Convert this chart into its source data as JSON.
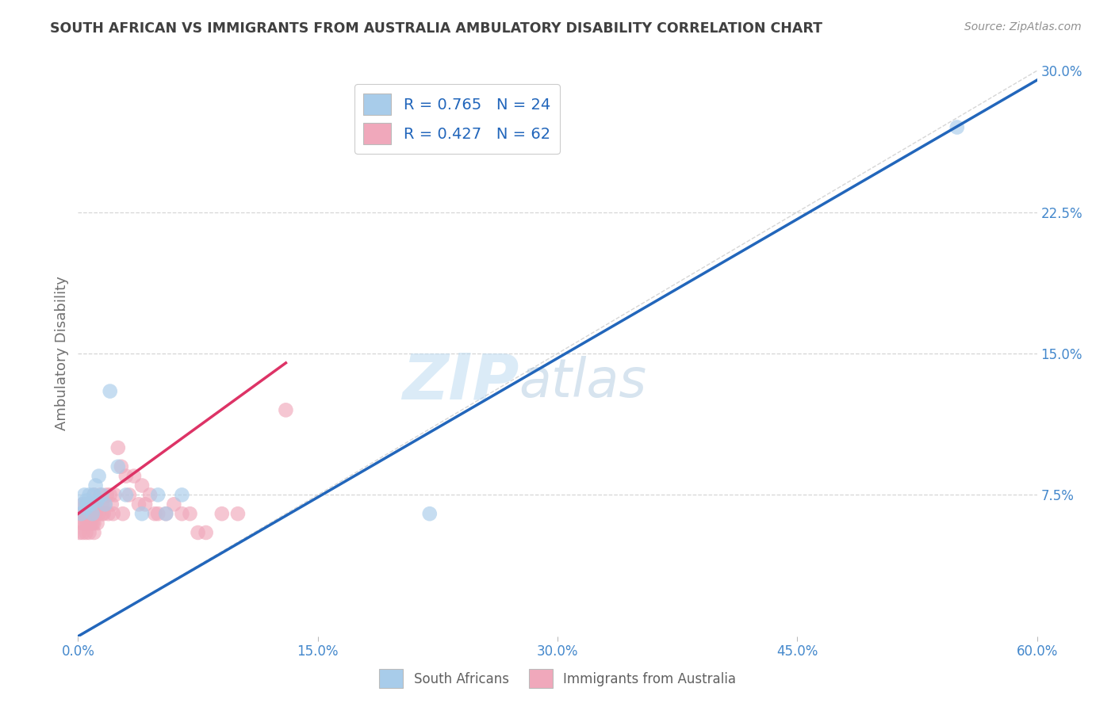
{
  "title": "SOUTH AFRICAN VS IMMIGRANTS FROM AUSTRALIA AMBULATORY DISABILITY CORRELATION CHART",
  "source": "Source: ZipAtlas.com",
  "ylabel": "Ambulatory Disability",
  "xlim": [
    0.0,
    0.6
  ],
  "ylim": [
    0.0,
    0.3
  ],
  "xticks": [
    0.0,
    0.15,
    0.3,
    0.45,
    0.6
  ],
  "xticklabels": [
    "0.0%",
    "15.0%",
    "30.0%",
    "45.0%",
    "60.0%"
  ],
  "yticks": [
    0.0,
    0.075,
    0.15,
    0.225,
    0.3
  ],
  "yticklabels": [
    "",
    "7.5%",
    "15.0%",
    "22.5%",
    "30.0%"
  ],
  "blue_R": 0.765,
  "blue_N": 24,
  "pink_R": 0.427,
  "pink_N": 62,
  "blue_color": "#a8ccea",
  "pink_color": "#f0a8bb",
  "blue_line_color": "#2266bb",
  "pink_line_color": "#dd3366",
  "legend_label_blue": "South Africans",
  "legend_label_pink": "Immigrants from Australia",
  "blue_line_x0": 0.0,
  "blue_line_y0": 0.0,
  "blue_line_x1": 0.6,
  "blue_line_y1": 0.295,
  "pink_line_x0": 0.0,
  "pink_line_y0": 0.065,
  "pink_line_x1": 0.13,
  "pink_line_y1": 0.145,
  "blue_scatter_x": [
    0.002,
    0.003,
    0.004,
    0.005,
    0.005,
    0.006,
    0.007,
    0.008,
    0.009,
    0.01,
    0.011,
    0.012,
    0.013,
    0.015,
    0.017,
    0.02,
    0.025,
    0.03,
    0.04,
    0.05,
    0.055,
    0.065,
    0.55,
    0.22
  ],
  "blue_scatter_y": [
    0.065,
    0.07,
    0.075,
    0.068,
    0.072,
    0.07,
    0.075,
    0.07,
    0.065,
    0.075,
    0.08,
    0.072,
    0.085,
    0.075,
    0.07,
    0.13,
    0.09,
    0.075,
    0.065,
    0.075,
    0.065,
    0.075,
    0.27,
    0.065
  ],
  "pink_scatter_x": [
    0.001,
    0.002,
    0.002,
    0.003,
    0.003,
    0.004,
    0.004,
    0.005,
    0.005,
    0.005,
    0.005,
    0.006,
    0.006,
    0.007,
    0.007,
    0.007,
    0.008,
    0.008,
    0.008,
    0.009,
    0.009,
    0.01,
    0.01,
    0.01,
    0.01,
    0.01,
    0.011,
    0.012,
    0.012,
    0.013,
    0.014,
    0.015,
    0.015,
    0.016,
    0.017,
    0.018,
    0.019,
    0.02,
    0.021,
    0.022,
    0.023,
    0.025,
    0.027,
    0.028,
    0.03,
    0.032,
    0.035,
    0.038,
    0.04,
    0.042,
    0.045,
    0.048,
    0.05,
    0.055,
    0.06,
    0.065,
    0.07,
    0.075,
    0.08,
    0.09,
    0.1,
    0.13
  ],
  "pink_scatter_y": [
    0.055,
    0.06,
    0.065,
    0.055,
    0.07,
    0.06,
    0.065,
    0.055,
    0.06,
    0.065,
    0.07,
    0.06,
    0.065,
    0.055,
    0.06,
    0.07,
    0.06,
    0.065,
    0.07,
    0.06,
    0.065,
    0.055,
    0.06,
    0.065,
    0.07,
    0.075,
    0.065,
    0.06,
    0.07,
    0.065,
    0.075,
    0.065,
    0.07,
    0.065,
    0.07,
    0.075,
    0.065,
    0.075,
    0.07,
    0.065,
    0.075,
    0.1,
    0.09,
    0.065,
    0.085,
    0.075,
    0.085,
    0.07,
    0.08,
    0.07,
    0.075,
    0.065,
    0.065,
    0.065,
    0.07,
    0.065,
    0.065,
    0.055,
    0.055,
    0.065,
    0.065,
    0.12
  ],
  "watermark_zip": "ZIP",
  "watermark_atlas": "atlas",
  "background_color": "#ffffff",
  "grid_color": "#cccccc",
  "title_color": "#404040",
  "axis_label_color": "#707070",
  "tick_color": "#4488cc",
  "source_color": "#909090",
  "marker_size": 180,
  "marker_alpha": 0.65
}
